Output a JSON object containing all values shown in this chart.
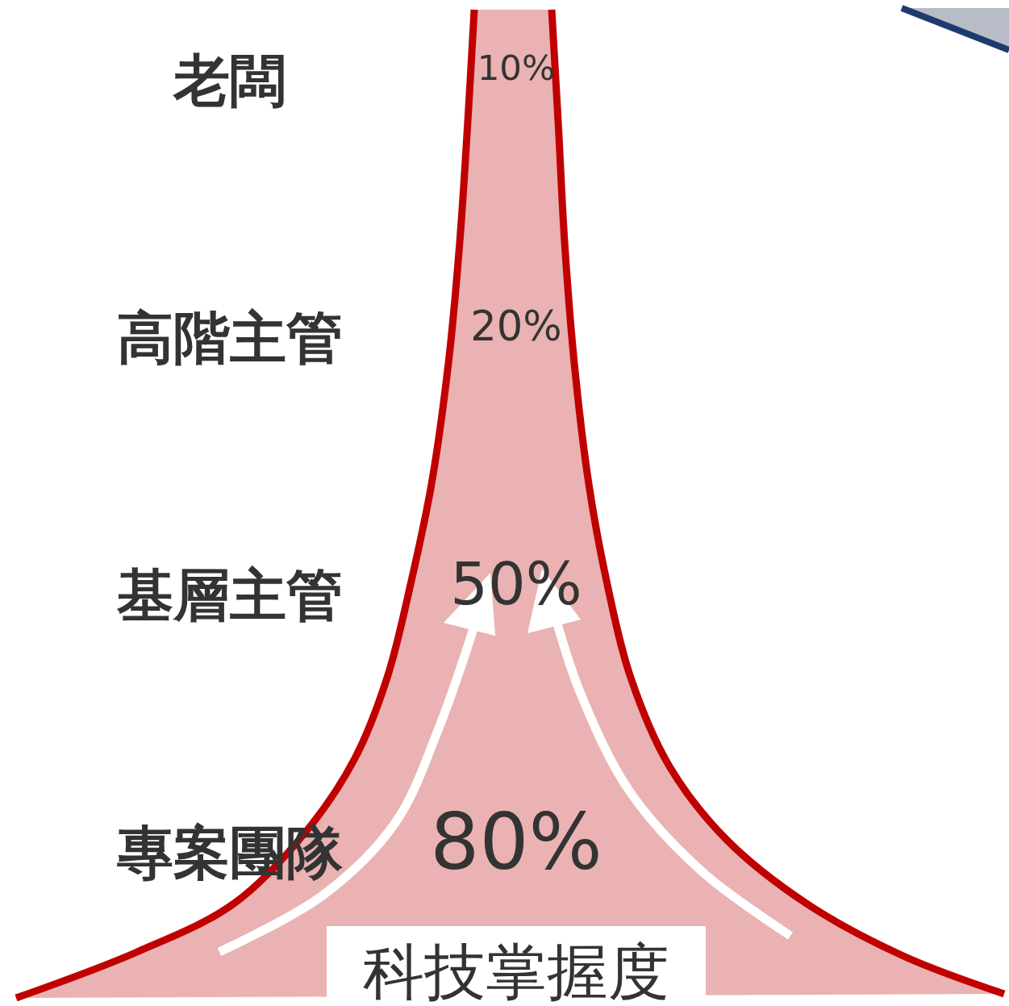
{
  "chart_data": {
    "type": "other",
    "categories": [
      "老闆",
      "高階主管",
      "基層主管",
      "專案團隊"
    ],
    "values": [
      10,
      20,
      50,
      80
    ],
    "value_labels": [
      "10%",
      "20%",
      "50%",
      "80%"
    ],
    "xlabel": "科技掌握度",
    "color": "#eab2b2"
  }
}
